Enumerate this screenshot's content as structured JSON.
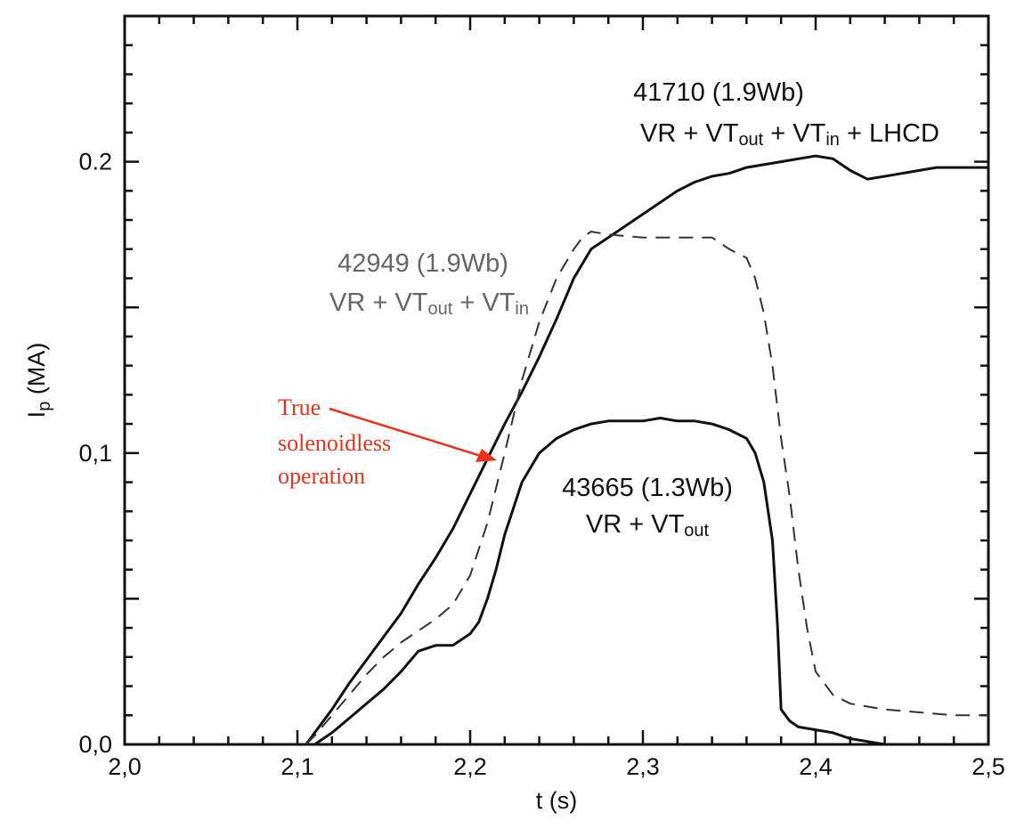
{
  "chart_data": {
    "type": "line",
    "xlabel": "t (s)",
    "ylabel_main": "I",
    "ylabel_sub": "p",
    "ylabel_rest": " (MA)",
    "xlim": [
      2.0,
      2.5
    ],
    "ylim": [
      0.0,
      0.25
    ],
    "x_ticks": [
      2.0,
      2.1,
      2.2,
      2.3,
      2.4,
      2.5
    ],
    "x_tick_labels": [
      "2,0",
      "2,1",
      "2,2",
      "2,3",
      "2,4",
      "2,5"
    ],
    "y_ticks": [
      0.0,
      0.1,
      0.2
    ],
    "y_tick_labels": [
      "0,0",
      "0,1",
      "0.2"
    ],
    "series": [
      {
        "style": "solid",
        "color": "#111111",
        "x": [
          2.105,
          2.11,
          2.12,
          2.13,
          2.14,
          2.15,
          2.16,
          2.17,
          2.18,
          2.19,
          2.2,
          2.21,
          2.22,
          2.23,
          2.24,
          2.25,
          2.26,
          2.27,
          2.28,
          2.29,
          2.3,
          2.31,
          2.32,
          2.33,
          2.34,
          2.35,
          2.36,
          2.37,
          2.38,
          2.39,
          2.4,
          2.41,
          2.42,
          2.43,
          2.44,
          2.45,
          2.46,
          2.47,
          2.48,
          2.49,
          2.5
        ],
        "y": [
          0.0,
          0.004,
          0.012,
          0.021,
          0.029,
          0.037,
          0.045,
          0.055,
          0.064,
          0.074,
          0.086,
          0.098,
          0.11,
          0.121,
          0.133,
          0.146,
          0.16,
          0.17,
          0.174,
          0.178,
          0.182,
          0.186,
          0.19,
          0.193,
          0.195,
          0.196,
          0.198,
          0.199,
          0.2,
          0.201,
          0.202,
          0.201,
          0.197,
          0.194,
          0.195,
          0.196,
          0.197,
          0.198,
          0.198,
          0.198,
          0.198
        ]
      },
      {
        "style": "dashed",
        "color": "#333333",
        "x": [
          2.105,
          2.11,
          2.12,
          2.13,
          2.14,
          2.15,
          2.16,
          2.17,
          2.18,
          2.19,
          2.2,
          2.21,
          2.22,
          2.23,
          2.24,
          2.25,
          2.26,
          2.265,
          2.27,
          2.28,
          2.3,
          2.32,
          2.34,
          2.35,
          2.36,
          2.365,
          2.37,
          2.375,
          2.38,
          2.385,
          2.39,
          2.395,
          2.4,
          2.41,
          2.42,
          2.44,
          2.46,
          2.48,
          2.5
        ],
        "y": [
          0.0,
          0.003,
          0.01,
          0.017,
          0.024,
          0.03,
          0.035,
          0.039,
          0.043,
          0.048,
          0.058,
          0.076,
          0.1,
          0.125,
          0.145,
          0.16,
          0.17,
          0.174,
          0.176,
          0.175,
          0.174,
          0.174,
          0.174,
          0.17,
          0.167,
          0.16,
          0.148,
          0.13,
          0.105,
          0.085,
          0.06,
          0.04,
          0.025,
          0.017,
          0.014,
          0.012,
          0.011,
          0.01,
          0.01
        ]
      },
      {
        "style": "solid",
        "color": "#111111",
        "x": [
          2.11,
          2.12,
          2.13,
          2.14,
          2.15,
          2.16,
          2.17,
          2.18,
          2.19,
          2.2,
          2.205,
          2.21,
          2.215,
          2.22,
          2.23,
          2.24,
          2.25,
          2.26,
          2.27,
          2.28,
          2.29,
          2.3,
          2.31,
          2.32,
          2.33,
          2.34,
          2.35,
          2.36,
          2.365,
          2.37,
          2.375,
          2.378,
          2.38,
          2.385,
          2.39,
          2.4,
          2.41,
          2.42,
          2.43,
          2.44
        ],
        "y": [
          0.0,
          0.004,
          0.009,
          0.014,
          0.019,
          0.025,
          0.032,
          0.034,
          0.034,
          0.038,
          0.042,
          0.05,
          0.06,
          0.072,
          0.09,
          0.1,
          0.105,
          0.108,
          0.11,
          0.111,
          0.111,
          0.111,
          0.112,
          0.111,
          0.111,
          0.11,
          0.108,
          0.105,
          0.1,
          0.09,
          0.07,
          0.04,
          0.012,
          0.008,
          0.006,
          0.005,
          0.004,
          0.002,
          0.001,
          0.0
        ]
      }
    ],
    "annotations": {
      "a41710_line1": "41710 (1.9Wb)",
      "a41710_line2_parts": [
        "VR + VT",
        "out",
        " + VT",
        "in",
        " + LHCD"
      ],
      "a42949_line1": "42949 (1.9Wb)",
      "a42949_line2_parts": [
        "VR + VT",
        "out",
        " + VT",
        "in"
      ],
      "a43665_line1": "43665 (1.3Wb)",
      "a43665_line2_parts": [
        "VR + VT",
        "out"
      ],
      "red_lines": [
        "True",
        "solenoidless",
        "operation"
      ]
    },
    "grid": false,
    "colors": {
      "red_annotation": "#e8321e",
      "gray_annotation": "#666666"
    }
  }
}
